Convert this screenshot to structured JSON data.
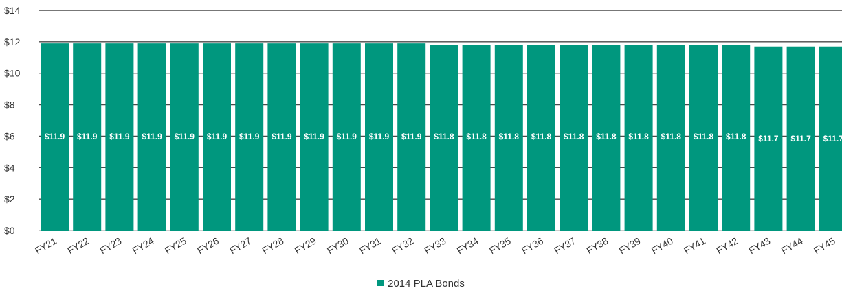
{
  "chart_data": {
    "type": "bar",
    "categories": [
      "FY21",
      "FY22",
      "FY23",
      "FY24",
      "FY25",
      "FY26",
      "FY27",
      "FY28",
      "FY29",
      "FY30",
      "FY31",
      "FY32",
      "FY33",
      "FY34",
      "FY35",
      "FY36",
      "FY37",
      "FY38",
      "FY39",
      "FY40",
      "FY41",
      "FY42",
      "FY43",
      "FY44",
      "FY45"
    ],
    "series": [
      {
        "name": "2014 PLA Bonds",
        "values": [
          11.9,
          11.9,
          11.9,
          11.9,
          11.9,
          11.9,
          11.9,
          11.9,
          11.9,
          11.9,
          11.9,
          11.9,
          11.8,
          11.8,
          11.8,
          11.8,
          11.8,
          11.8,
          11.8,
          11.8,
          11.8,
          11.8,
          11.7,
          11.7,
          11.7
        ],
        "labels": [
          "$11.9",
          "$11.9",
          "$11.9",
          "$11.9",
          "$11.9",
          "$11.9",
          "$11.9",
          "$11.9",
          "$11.9",
          "$11.9",
          "$11.9",
          "$11.9",
          "$11.8",
          "$11.8",
          "$11.8",
          "$11.8",
          "$11.8",
          "$11.8",
          "$11.8",
          "$11.8",
          "$11.8",
          "$11.8",
          "$11.7",
          "$11.7",
          "$11.7"
        ],
        "color": "#00977e"
      }
    ],
    "yticks": [
      0,
      2,
      4,
      6,
      8,
      10,
      12,
      14
    ],
    "ytick_labels": [
      "$0",
      "$2",
      "$4",
      "$6",
      "$8",
      "$10",
      "$12",
      "$14"
    ],
    "ylim": [
      0,
      14
    ],
    "grid": "horizontal",
    "legend_position": "bottom-center",
    "title": "",
    "xlabel": "",
    "ylabel": ""
  },
  "legend": {
    "label": "2014 PLA Bonds",
    "color": "#00977e"
  }
}
